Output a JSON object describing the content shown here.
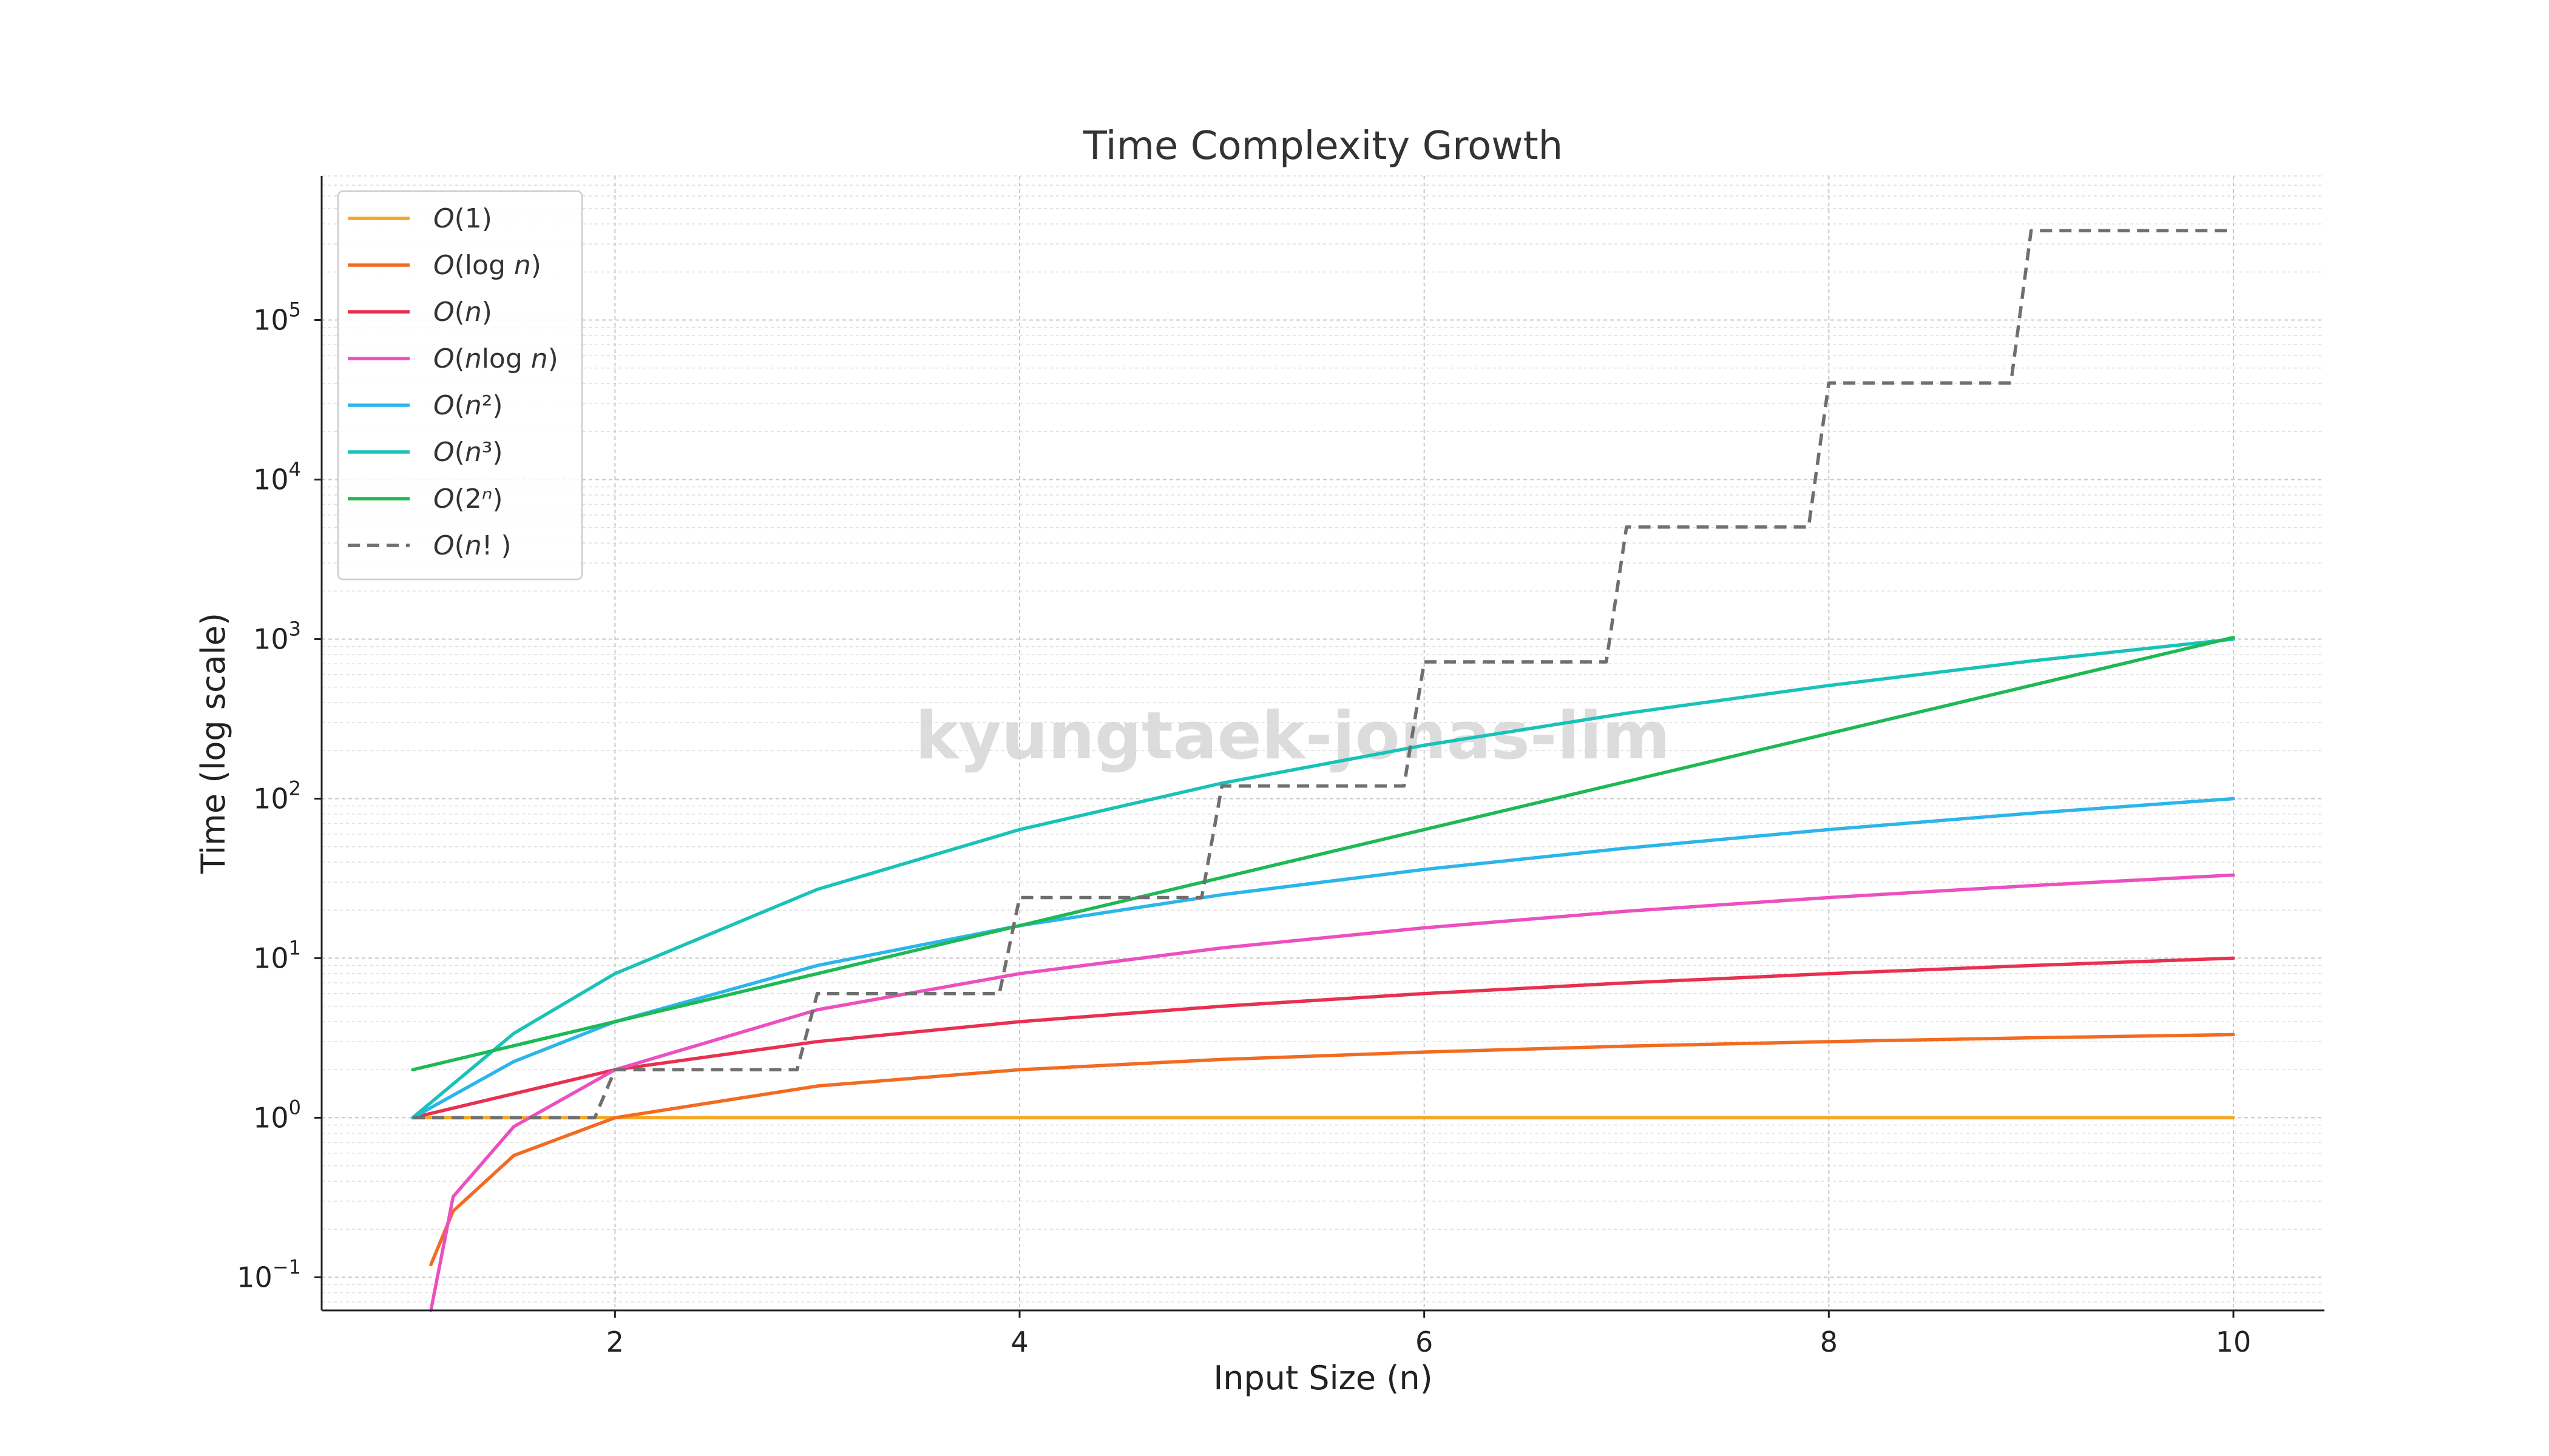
{
  "chart_data": {
    "type": "line",
    "title": "Time Complexity Growth",
    "xlabel": "Input Size (n)",
    "ylabel": "Time (log scale)",
    "xlim": [
      0.55,
      10.45
    ],
    "ylim": [
      0.062,
      800000
    ],
    "yscale": "log",
    "xticks": [
      2,
      4,
      6,
      8,
      10
    ],
    "yticks": [
      {
        "base": "10",
        "exp": "−1",
        "value": 0.1
      },
      {
        "base": "10",
        "exp": "0",
        "value": 1
      },
      {
        "base": "10",
        "exp": "1",
        "value": 10
      },
      {
        "base": "10",
        "exp": "2",
        "value": 100
      },
      {
        "base": "10",
        "exp": "3",
        "value": 1000
      },
      {
        "base": "10",
        "exp": "4",
        "value": 10000
      },
      {
        "base": "10",
        "exp": "5",
        "value": 100000
      }
    ],
    "grid": true,
    "legend_position": "top-left",
    "watermark": "kyungtaek-jonas-lim",
    "series": [
      {
        "name": "O(1)",
        "label_parts": [
          [
            "O",
            true
          ],
          [
            "(1)",
            false
          ]
        ],
        "color": "#f5a623",
        "dash": false,
        "x": [
          1,
          2,
          3,
          4,
          5,
          6,
          7,
          8,
          9,
          10
        ],
        "values": [
          1,
          1,
          1,
          1,
          1,
          1,
          1,
          1,
          1,
          1
        ]
      },
      {
        "name": "O(log n)",
        "label_parts": [
          [
            "O",
            true
          ],
          [
            "(log",
            false
          ],
          [
            " n",
            true
          ],
          [
            ")",
            false
          ]
        ],
        "color": "#f26b21",
        "dash": false,
        "x": [
          1.09,
          1.2,
          1.5,
          2,
          3,
          4,
          5,
          6,
          7,
          8,
          9,
          10
        ],
        "values": [
          0.12,
          0.26,
          0.58,
          1,
          1.58,
          2,
          2.32,
          2.58,
          2.81,
          3,
          3.17,
          3.32
        ]
      },
      {
        "name": "O(n)",
        "label_parts": [
          [
            "O",
            true
          ],
          [
            "(",
            false
          ],
          [
            "n",
            true
          ],
          [
            ")",
            false
          ]
        ],
        "color": "#e8304f",
        "dash": false,
        "x": [
          1,
          2,
          3,
          4,
          5,
          6,
          7,
          8,
          9,
          10
        ],
        "values": [
          1,
          2,
          3,
          4,
          5,
          6,
          7,
          8,
          9,
          10
        ]
      },
      {
        "name": "O(n log n)",
        "label_parts": [
          [
            "O",
            true
          ],
          [
            "(",
            false
          ],
          [
            "n",
            true
          ],
          [
            "log",
            false
          ],
          [
            " n",
            true
          ],
          [
            ")",
            false
          ]
        ],
        "color": "#ec4fc0",
        "dash": false,
        "x": [
          1.09,
          1.2,
          1.5,
          2,
          3,
          4,
          5,
          6,
          7,
          8,
          9,
          10
        ],
        "values": [
          0.06,
          0.32,
          0.88,
          2,
          4.75,
          8,
          11.6,
          15.5,
          19.7,
          24,
          28.5,
          33.2
        ]
      },
      {
        "name": "O(n²)",
        "label_parts": [
          [
            "O",
            true
          ],
          [
            "(",
            false
          ],
          [
            "n",
            true
          ],
          [
            "²",
            false
          ],
          [
            ")",
            false
          ]
        ],
        "color": "#2cb5ea",
        "dash": false,
        "x": [
          1,
          1.5,
          2,
          3,
          4,
          5,
          6,
          7,
          8,
          9,
          10
        ],
        "values": [
          1,
          2.25,
          4,
          9,
          16,
          25,
          36,
          49,
          64,
          81,
          100
        ]
      },
      {
        "name": "O(n³)",
        "label_parts": [
          [
            "O",
            true
          ],
          [
            "(",
            false
          ],
          [
            "n",
            true
          ],
          [
            "³",
            false
          ],
          [
            ")",
            false
          ]
        ],
        "color": "#19c2b8",
        "dash": false,
        "x": [
          1,
          1.5,
          2,
          3,
          4,
          5,
          6,
          7,
          8,
          9,
          10
        ],
        "values": [
          1,
          3.38,
          8,
          27,
          64,
          125,
          216,
          343,
          512,
          729,
          1000
        ]
      },
      {
        "name": "O(2ⁿ)",
        "label_parts": [
          [
            "O",
            true
          ],
          [
            "(2",
            false
          ],
          [
            "ⁿ",
            true
          ],
          [
            ")",
            false
          ]
        ],
        "color": "#1db954",
        "dash": false,
        "x": [
          1,
          2,
          3,
          4,
          5,
          6,
          7,
          8,
          9,
          10
        ],
        "values": [
          2,
          4,
          8,
          16,
          32,
          64,
          128,
          256,
          512,
          1024
        ]
      },
      {
        "name": "O(n!)",
        "label_parts": [
          [
            "O",
            true
          ],
          [
            "(",
            false
          ],
          [
            "n",
            true
          ],
          [
            "! )",
            false
          ]
        ],
        "color": "#6f6f6f",
        "dash": true,
        "step": true,
        "x": [
          1,
          2,
          3,
          4,
          5,
          6,
          7,
          8,
          9,
          10
        ],
        "values": [
          1,
          2,
          6,
          24,
          120,
          720,
          5040,
          40320,
          362880,
          362880
        ]
      }
    ]
  }
}
